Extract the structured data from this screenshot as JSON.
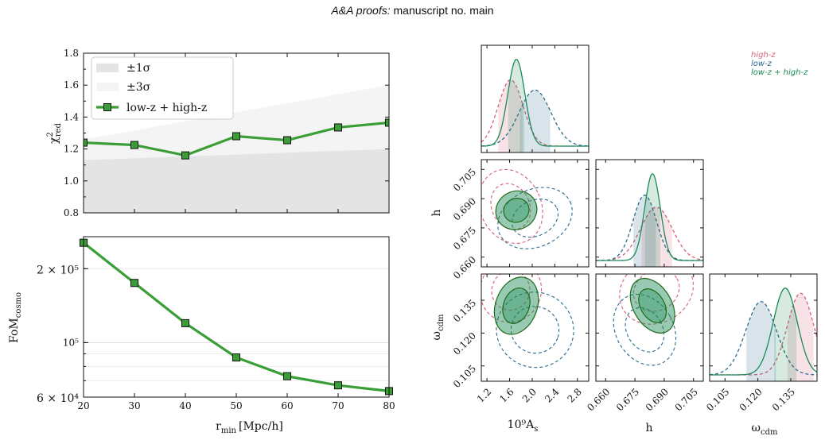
{
  "header": {
    "title_italic": "A&A proofs:",
    "title_rest": " manuscript no. main"
  },
  "colors": {
    "green": "#3a9e36",
    "green_dark": "#1f6b1c",
    "corner_green": "#1a8a55",
    "corner_blue": "#2a6a8c",
    "corner_pink": "#d4607a",
    "band1": "#e4e4e4",
    "band3": "#f4f4f4"
  },
  "chart_data": [
    {
      "type": "line",
      "id": "chi2",
      "x": [
        20,
        30,
        40,
        50,
        60,
        70,
        80
      ],
      "xlim": [
        20,
        80
      ],
      "ylim": [
        0.8,
        1.8
      ],
      "yticks": [
        "0.8",
        "1.0",
        "1.2",
        "1.4",
        "1.6",
        "1.8"
      ],
      "ylabel": "χ²red",
      "series": [
        {
          "name": "low-z + high-z",
          "values": [
            1.24,
            1.225,
            1.16,
            1.28,
            1.255,
            1.335,
            1.365
          ]
        }
      ],
      "bands": [
        {
          "name": "±1σ",
          "lower": [
            0.8,
            0.8
          ],
          "upper": [
            1.13,
            1.2
          ]
        },
        {
          "name": "±3σ",
          "lower": [
            0.8,
            0.8
          ],
          "upper": [
            1.26,
            1.6
          ]
        }
      ],
      "legend": [
        "±1σ",
        "±3σ",
        "low-z + high-z"
      ],
      "legend_position": "top-left"
    },
    {
      "type": "line",
      "id": "fom",
      "x": [
        20,
        30,
        40,
        50,
        60,
        70,
        80
      ],
      "xlim": [
        20,
        80
      ],
      "ylim": [
        60000,
        270000
      ],
      "yscale": "log",
      "ytick_labels": [
        {
          "value": 200000,
          "label": "2 × 10⁵"
        },
        {
          "value": 100000,
          "label": "10⁵"
        },
        {
          "value": 60000,
          "label": "6 × 10⁴"
        }
      ],
      "xticks": [
        "20",
        "30",
        "40",
        "50",
        "60",
        "70",
        "80"
      ],
      "xlabel": "rmin [Mpc/h]",
      "ylabel": "FoMcosmo",
      "series": [
        {
          "name": "low-z + high-z",
          "values": [
            255000,
            175000,
            120000,
            87000,
            73000,
            67000,
            63500
          ]
        }
      ]
    },
    {
      "type": "corner",
      "id": "posteriors",
      "parameters": [
        {
          "name": "10⁹As",
          "lim": [
            1.1,
            3.0
          ],
          "ticks": [
            "1.2",
            "1.6",
            "2.0",
            "2.4",
            "2.8"
          ]
        },
        {
          "name": "h",
          "lim": [
            0.655,
            0.71
          ],
          "ticks": [
            "0.660",
            "0.675",
            "0.690",
            "0.705"
          ]
        },
        {
          "name": "ωcdm",
          "lim": [
            0.098,
            0.147
          ],
          "ticks": [
            "0.105",
            "0.120",
            "0.135"
          ]
        }
      ],
      "legend": [
        "high-z",
        "low-z",
        "low-z + high-z"
      ],
      "legend_position": "top-right",
      "series": [
        {
          "name": "high-z",
          "mean": [
            1.62,
            0.686,
            0.1395
          ],
          "sigma": [
            0.22,
            0.008,
            0.006
          ]
        },
        {
          "name": "low-z",
          "mean": [
            2.05,
            0.68,
            0.1215
          ],
          "sigma": [
            0.28,
            0.006,
            0.007
          ]
        },
        {
          "name": "low-z + high-z",
          "mean": [
            1.72,
            0.684,
            0.1325
          ],
          "sigma": [
            0.15,
            0.004,
            0.0055
          ]
        }
      ]
    }
  ]
}
